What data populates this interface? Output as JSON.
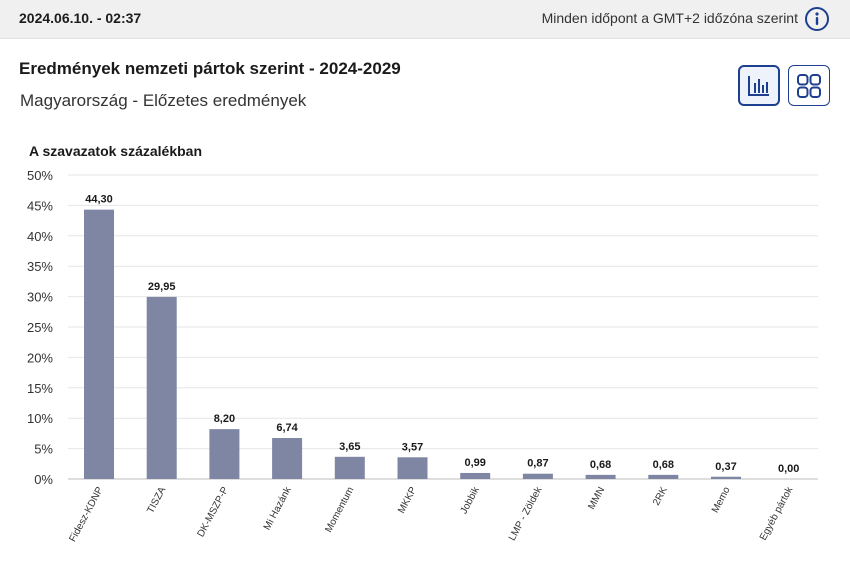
{
  "header": {
    "date": "2024.06.10. - 02:37",
    "timezone_note": "Minden időpont a GMT+2 időzóna szerint",
    "info_icon": "info-circle-icon"
  },
  "title": "Eredmények nemzeti pártok szerint - 2024-2029",
  "subtitle": "Magyarország - Előzetes eredmények",
  "view_toggle": {
    "chart_icon": "bar-chart-icon",
    "grid_icon": "grid-icon",
    "active": "chart"
  },
  "colors": {
    "bar": "#7e86a3",
    "accent": "#1d3f8f",
    "grid": "#e6e6e6"
  },
  "chart_data": {
    "type": "bar",
    "ylabel": "A szavazatok százalékban",
    "ylim": [
      0,
      50
    ],
    "yticks": [
      "0%",
      "5%",
      "10%",
      "15%",
      "20%",
      "25%",
      "30%",
      "35%",
      "40%",
      "45%",
      "50%"
    ],
    "categories": [
      "Fidesz-KDNP",
      "TISZA",
      "DK-MSZP-P",
      "Mi Hazánk",
      "Momentum",
      "MKKP",
      "Jobbik",
      "LMP - Zöldek",
      "MMN",
      "2RK",
      "Memo",
      "Egyéb pártok"
    ],
    "values": [
      44.3,
      29.95,
      8.2,
      6.74,
      3.65,
      3.57,
      0.99,
      0.87,
      0.68,
      0.68,
      0.37,
      0.0
    ],
    "value_labels": [
      "44,30",
      "29,95",
      "8,20",
      "6,74",
      "3,65",
      "3,57",
      "0,99",
      "0,87",
      "0,68",
      "0,68",
      "0,37",
      "0,00"
    ],
    "grid": true,
    "legend": "none"
  }
}
